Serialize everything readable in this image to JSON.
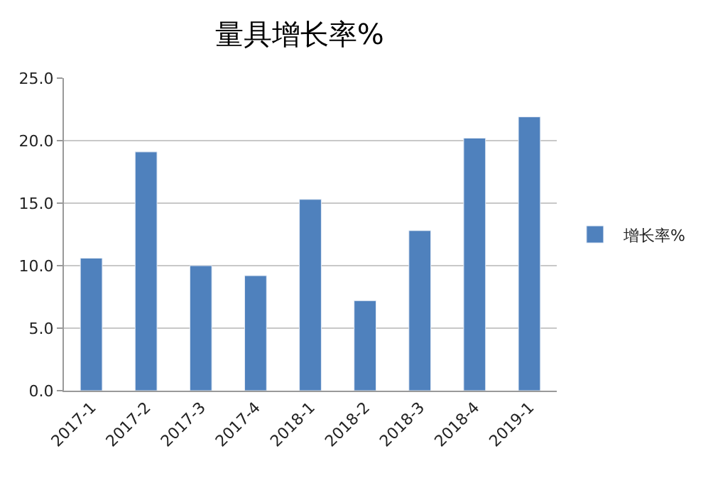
{
  "chart_data": {
    "type": "bar",
    "title": "量具增长率%",
    "categories": [
      "2017-1",
      "2017-2",
      "2017-3",
      "2017-4",
      "2018-1",
      "2018-2",
      "2018-3",
      "2018-4",
      "2019-1"
    ],
    "series": [
      {
        "name": "增长率%",
        "color": "#4f81bd",
        "values": [
          10.6,
          19.1,
          10.0,
          9.2,
          15.3,
          7.2,
          12.8,
          20.2,
          21.9
        ]
      }
    ],
    "ylim": [
      0,
      25
    ],
    "yticks": [
      {
        "value": 0,
        "label": "0.0"
      },
      {
        "value": 5,
        "label": "5.0"
      },
      {
        "value": 10,
        "label": "10.0"
      },
      {
        "value": 15,
        "label": "15.0"
      },
      {
        "value": 20,
        "label": "20.0"
      },
      {
        "value": 25,
        "label": "25.0"
      }
    ],
    "grid": "y",
    "legend": "right"
  }
}
